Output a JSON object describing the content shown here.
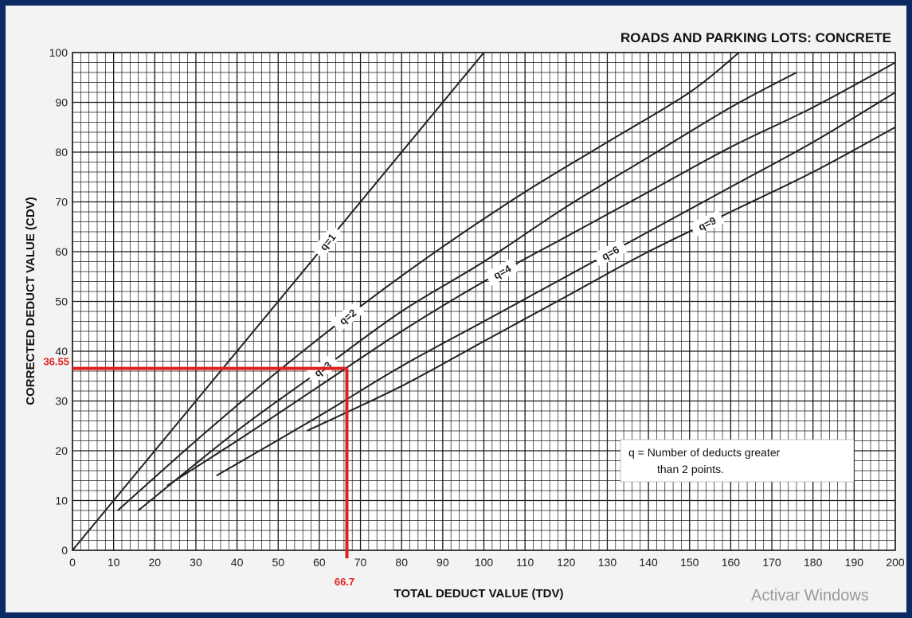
{
  "chart_data": {
    "type": "line",
    "title": "ROADS AND PARKING LOTS:  CONCRETE",
    "xlabel": "TOTAL DEDUCT VALUE (TDV)",
    "ylabel": "CORRECTED DEDUCT VALUE (CDV)",
    "xlim": [
      0,
      200
    ],
    "ylim": [
      0,
      100
    ],
    "x_ticks": [
      0,
      10,
      20,
      30,
      40,
      50,
      60,
      70,
      80,
      90,
      100,
      110,
      120,
      130,
      140,
      150,
      160,
      170,
      180,
      190,
      200
    ],
    "y_ticks": [
      0,
      10,
      20,
      30,
      40,
      50,
      60,
      70,
      80,
      90,
      100
    ],
    "grid": true,
    "series": [
      {
        "name": "q=1",
        "x": [
          0,
          25,
          50,
          75,
          100
        ],
        "y": [
          0,
          25,
          50,
          75,
          100
        ]
      },
      {
        "name": "q=2",
        "x": [
          11,
          30,
          50,
          70,
          90,
          110,
          130,
          150,
          162
        ],
        "y": [
          8,
          22,
          36,
          49,
          61,
          72,
          82,
          92,
          100
        ]
      },
      {
        "name": "q=3",
        "x": [
          16,
          40,
          60,
          80,
          100,
          120,
          140,
          160,
          176
        ],
        "y": [
          8,
          24,
          36,
          48,
          58,
          69,
          79,
          89,
          96
        ]
      },
      {
        "name": "q=4",
        "x": [
          23,
          40,
          60,
          80,
          100,
          120,
          140,
          160,
          180,
          200
        ],
        "y": [
          13,
          22,
          33,
          44,
          54,
          63,
          72,
          81,
          89,
          98
        ]
      },
      {
        "name": "q=6",
        "x": [
          35,
          60,
          80,
          100,
          120,
          140,
          160,
          180,
          200
        ],
        "y": [
          15,
          27,
          37,
          46,
          55,
          64,
          73,
          82,
          92
        ]
      },
      {
        "name": "q=9",
        "x": [
          57,
          80,
          100,
          120,
          140,
          160,
          180,
          200
        ],
        "y": [
          24,
          33,
          42,
          51,
          60,
          68,
          76,
          85
        ]
      }
    ],
    "annotation": {
      "tdv": 66.7,
      "cdv": 36.55,
      "tdv_label": "66.7",
      "cdv_label": "36.55",
      "color": "#e02020"
    },
    "legend_note": {
      "line1": "q = Number of deducts greater",
      "line2": "than 2 points."
    }
  },
  "watermark": {
    "text": "Activar Windows"
  },
  "colors": {
    "frame": "#0b2a63",
    "grid": "#1a1a1a",
    "curve": "#222222"
  }
}
